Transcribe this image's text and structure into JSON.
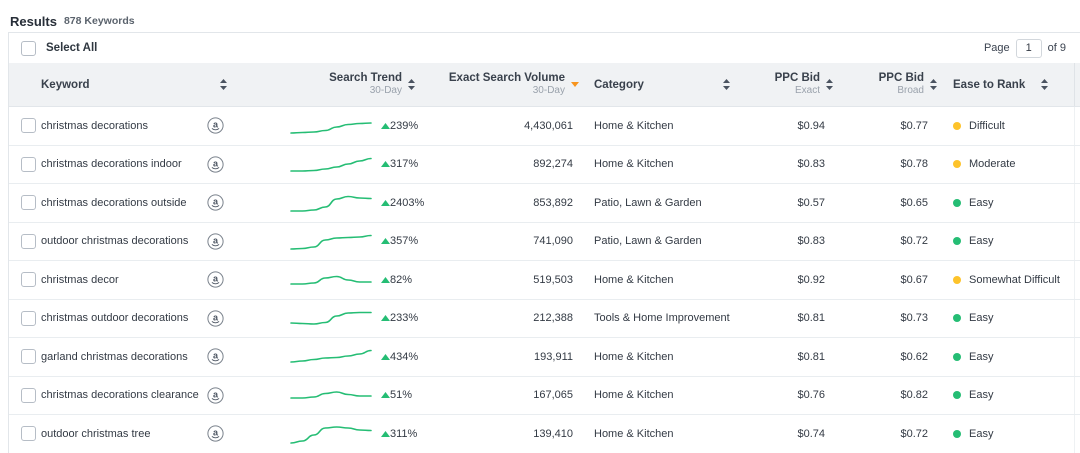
{
  "results_header": {
    "title": "Results",
    "count_label": "878 Keywords"
  },
  "toolbar": {
    "select_all_label": "Select All",
    "page_label": "Page",
    "page_value": "1",
    "page_total_label": "of 9"
  },
  "colors": {
    "green": "#25bd74",
    "yellow": "#fdc32b",
    "sort_active_orange": "#f7941d",
    "sort_icon_gray": "#4a5360",
    "header_bg": "#f0f2f4"
  },
  "table": {
    "columns": {
      "keyword": {
        "label": "Keyword"
      },
      "search_trend": {
        "label": "Search Trend",
        "sublabel": "30-Day"
      },
      "volume": {
        "label": "Exact Search Volume",
        "sublabel": "30-Day",
        "sorted": "desc"
      },
      "category": {
        "label": "Category"
      },
      "ppc_exact": {
        "label": "PPC Bid",
        "sublabel": "Exact"
      },
      "ppc_broad": {
        "label": "PPC Bid",
        "sublabel": "Broad"
      },
      "ease": {
        "label": "Ease to Rank"
      }
    },
    "rows": [
      {
        "keyword": "christmas decorations",
        "trend_pct": "239%",
        "trend_dir": "up",
        "volume": "4,430,061",
        "category": "Home & Kitchen",
        "ppc_exact": "$0.94",
        "ppc_broad": "$0.77",
        "ease": "Difficult",
        "ease_color_key": "yellow",
        "spark": [
          19,
          18.5,
          18,
          16.5,
          13,
          10.5,
          9.5,
          9
        ]
      },
      {
        "keyword": "christmas decorations indoor",
        "trend_pct": "317%",
        "trend_dir": "up",
        "volume": "892,274",
        "category": "Home & Kitchen",
        "ppc_exact": "$0.83",
        "ppc_broad": "$0.78",
        "ease": "Moderate",
        "ease_color_key": "yellow",
        "spark": [
          19,
          19,
          18.5,
          17,
          15,
          12,
          9,
          6.5
        ]
      },
      {
        "keyword": "christmas decorations outside",
        "trend_pct": "2403%",
        "trend_dir": "up",
        "volume": "853,892",
        "category": "Patio, Lawn & Garden",
        "ppc_exact": "$0.57",
        "ppc_broad": "$0.65",
        "ease": "Easy",
        "ease_color_key": "green",
        "spark": [
          20,
          20,
          19,
          16,
          8,
          5.5,
          7,
          7.5
        ]
      },
      {
        "keyword": "outdoor christmas decorations",
        "trend_pct": "357%",
        "trend_dir": "up",
        "volume": "741,090",
        "category": "Patio, Lawn & Garden",
        "ppc_exact": "$0.83",
        "ppc_broad": "$0.72",
        "ease": "Easy",
        "ease_color_key": "green",
        "spark": [
          20,
          19.5,
          18,
          11,
          9,
          8.5,
          8,
          6.5
        ]
      },
      {
        "keyword": "christmas decor",
        "trend_pct": "82%",
        "trend_dir": "up",
        "volume": "519,503",
        "category": "Home & Kitchen",
        "ppc_exact": "$0.92",
        "ppc_broad": "$0.67",
        "ease": "Somewhat Difficult",
        "ease_color_key": "yellow",
        "spark": [
          16,
          16,
          15,
          10,
          8.5,
          12,
          14,
          14
        ]
      },
      {
        "keyword": "christmas outdoor decorations",
        "trend_pct": "233%",
        "trend_dir": "up",
        "volume": "212,388",
        "category": "Tools & Home Improvement",
        "ppc_exact": "$0.81",
        "ppc_broad": "$0.73",
        "ease": "Easy",
        "ease_color_key": "green",
        "spark": [
          17,
          17.5,
          18,
          16.5,
          10,
          7,
          6.5,
          6.5
        ]
      },
      {
        "keyword": "garland christmas decorations",
        "trend_pct": "434%",
        "trend_dir": "up",
        "volume": "193,911",
        "category": "Home & Kitchen",
        "ppc_exact": "$0.81",
        "ppc_broad": "$0.62",
        "ease": "Easy",
        "ease_color_key": "green",
        "spark": [
          17,
          16,
          14.5,
          13,
          12.5,
          11,
          9,
          5.5
        ]
      },
      {
        "keyword": "christmas decorations clearance",
        "trend_pct": "51%",
        "trend_dir": "up",
        "volume": "167,065",
        "category": "Home & Kitchen",
        "ppc_exact": "$0.76",
        "ppc_broad": "$0.82",
        "ease": "Easy",
        "ease_color_key": "green",
        "spark": [
          15,
          15,
          14,
          10.5,
          9,
          11.5,
          13,
          13
        ]
      },
      {
        "keyword": "outdoor christmas tree",
        "trend_pct": "311%",
        "trend_dir": "up",
        "volume": "139,410",
        "category": "Home & Kitchen",
        "ppc_exact": "$0.74",
        "ppc_broad": "$0.72",
        "ease": "Easy",
        "ease_color_key": "green",
        "spark": [
          21,
          19,
          13,
          6,
          5,
          6,
          8,
          8.5
        ]
      }
    ]
  },
  "icons": {
    "sort": "sort-updown-icon",
    "sorted_desc": "sort-desc-icon",
    "trend_up": "triangle-up-icon",
    "marketplace": "amazon-icon"
  }
}
